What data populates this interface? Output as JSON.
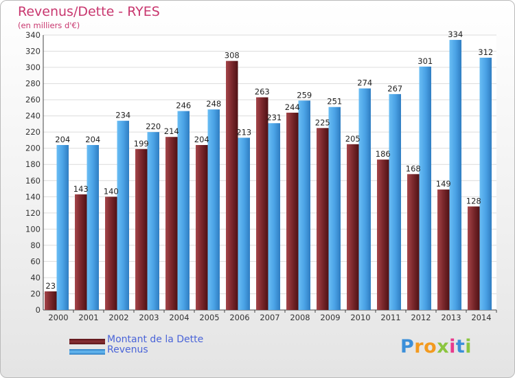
{
  "header": {
    "title": "Revenus/Dette - RYES",
    "subtitle": "(en milliers d'€)"
  },
  "chart_data": {
    "type": "bar",
    "title": "Revenus/Dette - RYES",
    "ylabel": "(en milliers d'€)",
    "xlabel": "",
    "ylim": [
      0,
      340
    ],
    "yticks": [
      0,
      20,
      40,
      60,
      80,
      100,
      120,
      140,
      160,
      180,
      200,
      220,
      240,
      260,
      280,
      300,
      320,
      340
    ],
    "grid": true,
    "legend_position": "bottom-left",
    "categories": [
      "2000",
      "2001",
      "2002",
      "2003",
      "2004",
      "2005",
      "2006",
      "2007",
      "2008",
      "2009",
      "2010",
      "2011",
      "2012",
      "2013",
      "2014"
    ],
    "series": [
      {
        "name": "Montant de la Dette",
        "color": "#7d2a2e",
        "values": [
          23,
          143,
          140,
          199,
          214,
          204,
          308,
          263,
          244,
          225,
          205,
          186,
          168,
          149,
          128
        ]
      },
      {
        "name": "Revenus",
        "color": "#4ba3e6",
        "values": [
          204,
          204,
          234,
          220,
          246,
          248,
          213,
          231,
          259,
          251,
          274,
          267,
          301,
          334,
          312
        ]
      }
    ]
  },
  "legend": {
    "debt_label": "Montant de la Dette",
    "revenue_label": "Revenus"
  },
  "logo": {
    "text": "Proxiti",
    "letters": [
      "P",
      "r",
      "o",
      "x",
      "i",
      "t",
      "i"
    ],
    "colors": [
      "#3b8fd9",
      "#f39a1f",
      "#f39a1f",
      "#8bc53f",
      "#e83a8c",
      "#3b8fd9",
      "#8bc53f"
    ]
  }
}
